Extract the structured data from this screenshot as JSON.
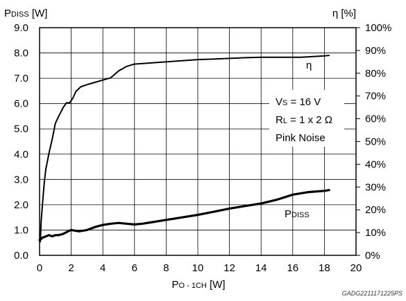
{
  "chart_data": {
    "type": "line",
    "x": {
      "label_main": "P",
      "label_sub": "O - 1CH",
      "label_unit": " [W]",
      "range": [
        0,
        20
      ],
      "ticks": [
        0,
        2,
        4,
        6,
        8,
        10,
        12,
        14,
        16,
        18,
        20
      ],
      "tick_labels": [
        "0",
        "2",
        "4",
        "6",
        "8",
        "10",
        "12",
        "14",
        "16",
        "18",
        "20"
      ]
    },
    "y_left": {
      "label_main": "P",
      "label_sub": "DISS",
      "label_unit": " [W]",
      "range": [
        0,
        9
      ],
      "ticks": [
        0,
        1,
        2,
        3,
        4,
        5,
        6,
        7,
        8,
        9
      ],
      "tick_labels": [
        "0.0",
        "1.0",
        "2.0",
        "3.0",
        "4.0",
        "5.0",
        "6.0",
        "7.0",
        "8.0",
        "9.0"
      ]
    },
    "y_right": {
      "label": "η [%]",
      "range": [
        0,
        100
      ],
      "ticks": [
        0,
        10,
        20,
        30,
        40,
        50,
        60,
        70,
        80,
        90,
        100
      ],
      "tick_labels": [
        "0%",
        "10%",
        "20%",
        "30%",
        "40%",
        "50%",
        "60%",
        "70%",
        "80%",
        "90%",
        "100%"
      ]
    },
    "grid": true,
    "series": [
      {
        "name": "η",
        "axis": "right",
        "color": "#000000",
        "x": [
          0.05,
          0.1,
          0.2,
          0.3,
          0.4,
          0.6,
          0.8,
          1.0,
          1.2,
          1.5,
          1.7,
          1.9,
          2.1,
          2.3,
          2.6,
          3.0,
          3.5,
          4.0,
          4.5,
          5.0,
          5.5,
          6.0,
          7.0,
          8.0,
          9.0,
          10.0,
          11.0,
          12.0,
          13.0,
          14.0,
          15.0,
          16.0,
          16.5,
          17.0,
          18.0,
          18.3
        ],
        "y": [
          6,
          15,
          24,
          32,
          38,
          45,
          51,
          58,
          61,
          65,
          67,
          67,
          69,
          72,
          74,
          75,
          76,
          77,
          78,
          81,
          83,
          84,
          84.5,
          85,
          85.5,
          86,
          86.2,
          86.5,
          86.8,
          87,
          87,
          87,
          87,
          87.2,
          87.6,
          87.8
        ]
      },
      {
        "name": "P",
        "name_sub": "DISS",
        "axis": "left",
        "color": "#000000",
        "x": [
          0,
          0.2,
          0.4,
          0.6,
          0.8,
          1.0,
          1.2,
          1.5,
          1.8,
          2.0,
          2.5,
          3.0,
          3.5,
          4.0,
          4.5,
          5.0,
          5.5,
          6.0,
          6.5,
          7.0,
          8.0,
          9.0,
          10.0,
          11.0,
          12.0,
          13.0,
          14.0,
          15.0,
          16.0,
          16.5,
          17.0,
          18.0,
          18.3
        ],
        "y": [
          0.6,
          0.7,
          0.75,
          0.8,
          0.75,
          0.8,
          0.8,
          0.85,
          0.95,
          1.0,
          0.95,
          1.0,
          1.12,
          1.2,
          1.25,
          1.28,
          1.25,
          1.22,
          1.25,
          1.3,
          1.4,
          1.5,
          1.6,
          1.72,
          1.85,
          1.95,
          2.05,
          2.2,
          2.4,
          2.45,
          2.5,
          2.55,
          2.58
        ]
      }
    ],
    "annotations": {
      "eta_label": "η",
      "conditions": [
        {
          "main": "V",
          "sub": "S",
          "rest": " = 16 V"
        },
        {
          "main": "R",
          "sub": "L",
          "rest": " = 1 x 2 Ω"
        },
        {
          "main": "Pink Noise",
          "sub": "",
          "rest": ""
        }
      ]
    },
    "footer": "GADG2211171225PS"
  }
}
